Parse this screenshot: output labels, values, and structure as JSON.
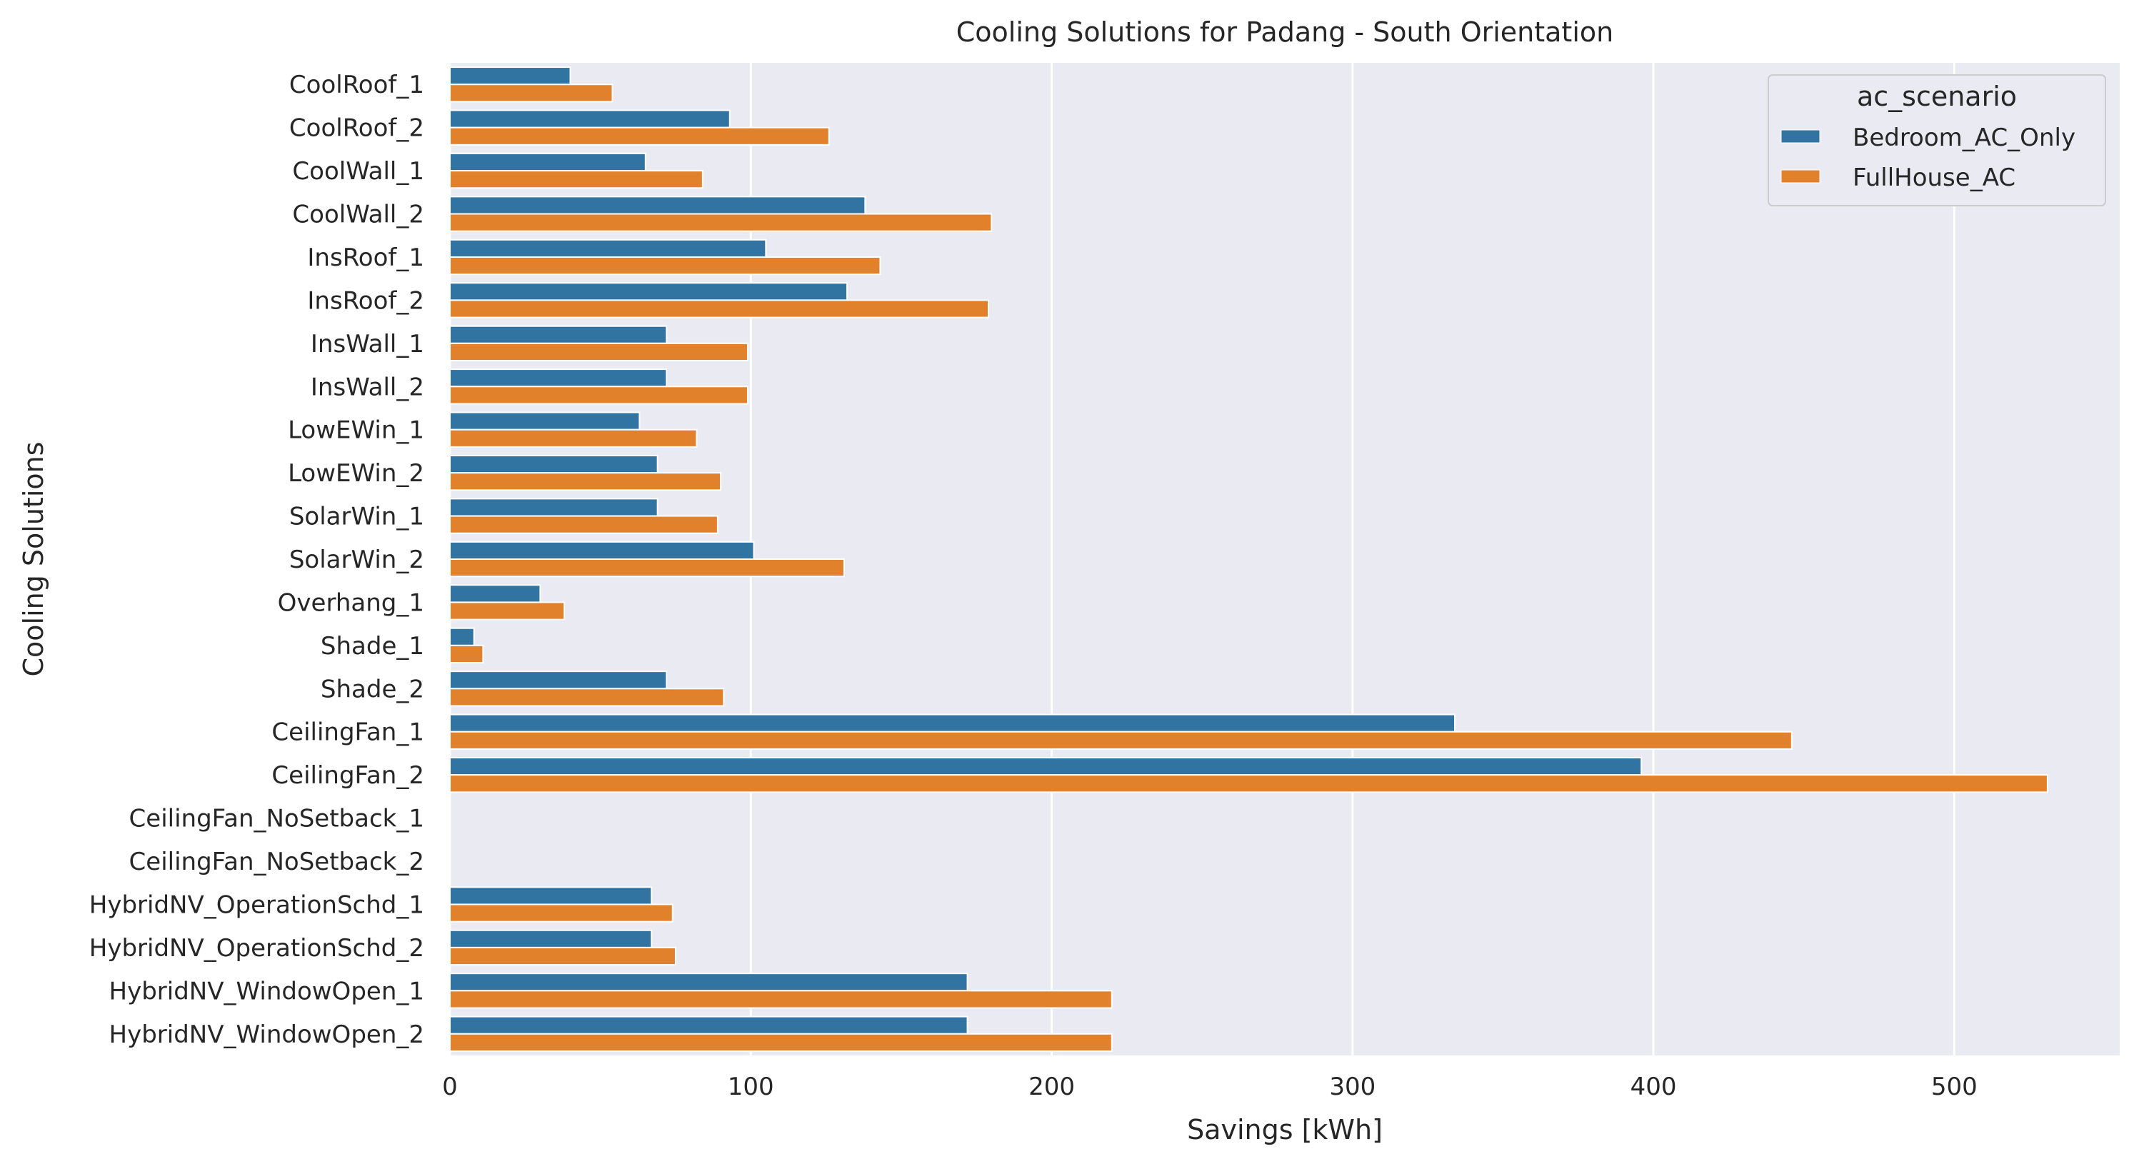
{
  "chart_data": {
    "type": "bar",
    "orientation": "horizontal",
    "title": "Cooling Solutions for Padang - South Orientation",
    "xlabel": "Savings [kWh]",
    "ylabel": "Cooling Solutions",
    "xlim": [
      0,
      555
    ],
    "xticks": [
      0,
      100,
      200,
      300,
      400,
      500
    ],
    "grid": true,
    "legend_placement": "top-right",
    "legend_title": "ac_scenario",
    "categories": [
      "CoolRoof_1",
      "CoolRoof_2",
      "CoolWall_1",
      "CoolWall_2",
      "InsRoof_1",
      "InsRoof_2",
      "InsWall_1",
      "InsWall_2",
      "LowEWin_1",
      "LowEWin_2",
      "SolarWin_1",
      "SolarWin_2",
      "Overhang_1",
      "Shade_1",
      "Shade_2",
      "CeilingFan_1",
      "CeilingFan_2",
      "CeilingFan_NoSetback_1",
      "CeilingFan_NoSetback_2",
      "HybridNV_OperationSchd_1",
      "HybridNV_OperationSchd_2",
      "HybridNV_WindowOpen_1",
      "HybridNV_WindowOpen_2"
    ],
    "series": [
      {
        "name": "Bedroom_AC_Only",
        "color": "#3274a1",
        "values": [
          40,
          93,
          65,
          138,
          105,
          132,
          72,
          72,
          63,
          69,
          69,
          101,
          30,
          8,
          72,
          334,
          396,
          null,
          null,
          67,
          67,
          172,
          172
        ]
      },
      {
        "name": "FullHouse_AC",
        "color": "#e1812c",
        "values": [
          54,
          126,
          84,
          180,
          143,
          179,
          99,
          99,
          82,
          90,
          89,
          131,
          38,
          11,
          91,
          446,
          531,
          null,
          null,
          74,
          75,
          220,
          220
        ]
      }
    ]
  }
}
